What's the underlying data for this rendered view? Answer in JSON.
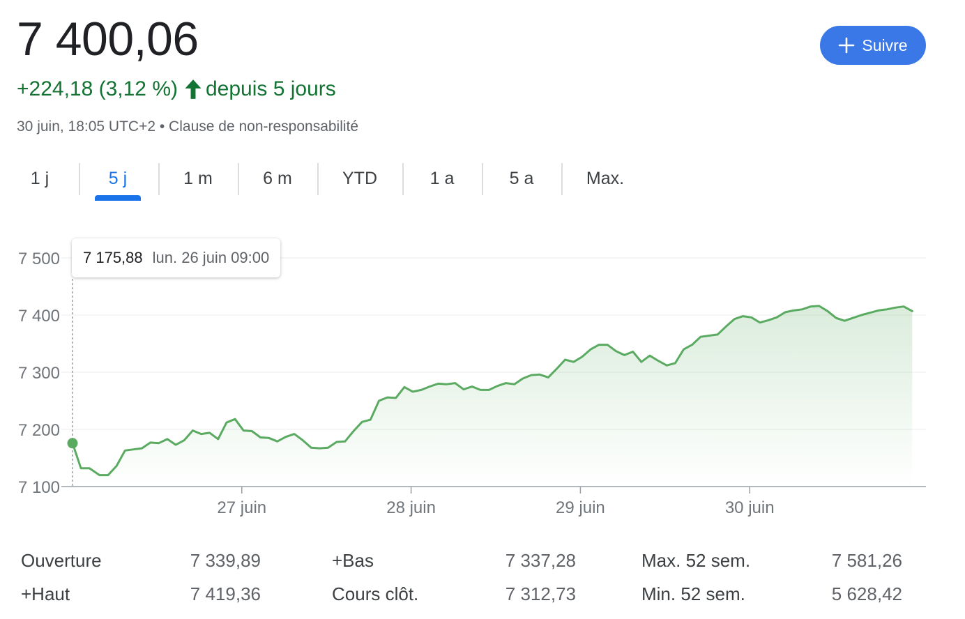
{
  "header": {
    "price": "7 400,06",
    "change": "+224,18 (3,12 %)",
    "change_suffix": "depuis 5 jours",
    "meta": "30 juin, 18:05 UTC+2 • Clause de non-responsabilité",
    "follow_label": "Suivre"
  },
  "tabs": [
    {
      "label": "1 j",
      "active": false
    },
    {
      "label": "5 j",
      "active": true
    },
    {
      "label": "1 m",
      "active": false
    },
    {
      "label": "6 m",
      "active": false
    },
    {
      "label": "YTD",
      "active": false
    },
    {
      "label": "1 a",
      "active": false
    },
    {
      "label": "5 a",
      "active": false
    },
    {
      "label": "Max.",
      "active": false
    }
  ],
  "tooltip": {
    "value": "7 175,88",
    "date": "lun. 26 juin 09:00"
  },
  "colors": {
    "line": "#5aab61",
    "positive": "#137333",
    "accent": "#1a73e8",
    "button": "#3b78e7"
  },
  "chart_data": {
    "type": "area",
    "y_ticks": [
      7100,
      7200,
      7300,
      7400,
      7500
    ],
    "y_tick_labels": [
      "7 100",
      "7 200",
      "7 300",
      "7 400",
      "7 500"
    ],
    "ylim": [
      7100,
      7500
    ],
    "x_ticks": [
      {
        "label": "27 juin",
        "day": 1
      },
      {
        "label": "28 juin",
        "day": 2
      },
      {
        "label": "29 juin",
        "day": 3
      },
      {
        "label": "30 juin",
        "day": 4
      }
    ],
    "xlim": [
      0,
      5
    ],
    "series": [
      {
        "x": [
          0.0,
          0.05,
          0.1,
          0.16,
          0.21,
          0.26,
          0.31,
          0.36,
          0.41,
          0.46,
          0.51,
          0.56,
          0.61,
          0.66,
          0.71,
          0.76,
          0.81,
          0.86,
          0.91,
          0.96,
          1.01,
          1.06,
          1.11,
          1.16,
          1.21,
          1.26,
          1.31,
          1.36,
          1.41,
          1.46,
          1.51,
          1.56,
          1.61,
          1.66,
          1.71,
          1.76,
          1.81,
          1.86,
          1.91,
          1.96,
          2.01,
          2.06,
          2.11,
          2.16,
          2.21,
          2.26,
          2.31,
          2.36,
          2.41,
          2.46,
          2.51,
          2.56,
          2.61,
          2.66,
          2.71,
          2.76,
          2.81,
          2.86,
          2.91,
          2.96,
          3.01,
          3.06,
          3.11,
          3.16,
          3.21,
          3.26,
          3.31,
          3.36,
          3.41,
          3.46,
          3.51,
          3.56,
          3.61,
          3.66,
          3.71,
          3.76,
          3.81,
          3.86,
          3.91,
          3.96,
          4.01,
          4.06,
          4.11,
          4.16,
          4.21,
          4.26,
          4.31,
          4.36,
          4.41,
          4.46,
          4.51,
          4.56,
          4.61,
          4.66,
          4.71,
          4.76,
          4.81,
          4.86,
          4.91,
          4.96
        ],
        "y": [
          7176,
          7132,
          7132,
          7120,
          7120,
          7136,
          7163,
          7165,
          7167,
          7177,
          7176,
          7183,
          7173,
          7181,
          7198,
          7192,
          7194,
          7183,
          7212,
          7218,
          7198,
          7197,
          7186,
          7185,
          7179,
          7187,
          7192,
          7181,
          7168,
          7167,
          7168,
          7178,
          7179,
          7197,
          7213,
          7217,
          7250,
          7256,
          7255,
          7274,
          7266,
          7269,
          7275,
          7280,
          7279,
          7281,
          7270,
          7275,
          7269,
          7269,
          7276,
          7281,
          7279,
          7289,
          7295,
          7296,
          7291,
          7306,
          7322,
          7318,
          7327,
          7340,
          7348,
          7348,
          7337,
          7330,
          7336,
          7318,
          7329,
          7320,
          7312,
          7316,
          7340,
          7348,
          7362,
          7364,
          7366,
          7380,
          7393,
          7398,
          7396,
          7387,
          7391,
          7396,
          7405,
          7408,
          7410,
          7415,
          7416,
          7407,
          7395,
          7390,
          7395,
          7400,
          7404,
          7408,
          7410,
          7413,
          7415,
          7407
        ]
      }
    ],
    "highlight_point": {
      "x": 0.0,
      "y": 7175.88
    },
    "grid": true
  },
  "stats": {
    "rows": [
      [
        {
          "label": "Ouverture",
          "value": "7 339,89"
        },
        {
          "label": "+Bas",
          "value": "7 337,28"
        },
        {
          "label": "Max. 52 sem.",
          "value": "7 581,26"
        }
      ],
      [
        {
          "label": "+Haut",
          "value": "7 419,36"
        },
        {
          "label": "Cours clôt.",
          "value": "7 312,73"
        },
        {
          "label": "Min. 52 sem.",
          "value": "5 628,42"
        }
      ]
    ]
  }
}
